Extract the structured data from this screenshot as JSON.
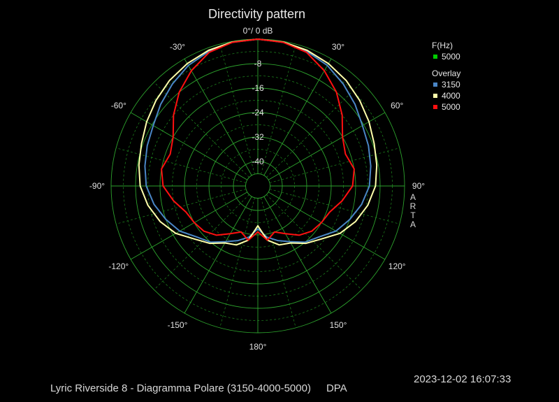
{
  "chart_data": {
    "type": "polar",
    "title": "Directivity pattern",
    "reference_label": "0°/ 0 dB",
    "radial_unit": "dB",
    "radial_range": [
      -48,
      0
    ],
    "radial_ticks": [
      "-8",
      "-16",
      "-24",
      "-32",
      "-40"
    ],
    "radial_tick_values": [
      -8,
      -16,
      -24,
      -32,
      -40
    ],
    "angle_ticks": [
      {
        "deg": 0,
        "label": "0°/ 0 dB"
      },
      {
        "deg": 30,
        "label": "30°"
      },
      {
        "deg": 60,
        "label": "60°"
      },
      {
        "deg": 90,
        "label": "90°"
      },
      {
        "deg": 120,
        "label": "120°"
      },
      {
        "deg": 150,
        "label": "150°"
      },
      {
        "deg": 180,
        "label": "180°"
      },
      {
        "deg": -150,
        "label": "-150°"
      },
      {
        "deg": -120,
        "label": "-120°"
      },
      {
        "deg": -90,
        "label": "-90°"
      },
      {
        "deg": -60,
        "label": "-60°"
      },
      {
        "deg": -30,
        "label": "-30°"
      }
    ],
    "grid": true,
    "legend": {
      "placement": "top-right",
      "group1_title": "F(Hz)",
      "group1_items": [
        {
          "label": "5000",
          "color": "#00cc00"
        }
      ],
      "group2_title": "Overlay",
      "group2_items": [
        {
          "label": "3150",
          "color": "#4a86c6"
        },
        {
          "label": "4000",
          "color": "#ffffaa"
        },
        {
          "label": "5000",
          "color": "#ff1010"
        }
      ]
    },
    "angles_deg": [
      0,
      10,
      20,
      30,
      40,
      50,
      60,
      70,
      80,
      90,
      100,
      110,
      120,
      130,
      140,
      150,
      160,
      170,
      180
    ],
    "series": [
      {
        "name": "3150",
        "color": "#4a86c6",
        "values": [
          0,
          -0.3,
          -1.2,
          -2.5,
          -4.5,
          -6.5,
          -8.5,
          -9.5,
          -10.5,
          -11.5,
          -13.5,
          -16,
          -18.5,
          -22,
          -24,
          -27,
          -29,
          -31,
          -34
        ]
      },
      {
        "name": "4000",
        "color": "#ffffaa",
        "values": [
          0,
          -0.2,
          -0.8,
          -1.8,
          -3,
          -4.5,
          -6,
          -7.5,
          -8.5,
          -9.5,
          -11.5,
          -14,
          -17,
          -21,
          -23.5,
          -26.5,
          -27.5,
          -30,
          -35
        ]
      },
      {
        "name": "5000",
        "color": "#ff1010",
        "values": [
          0,
          -0.3,
          -1.5,
          -4.5,
          -8,
          -12,
          -16,
          -17.5,
          -16,
          -17,
          -20,
          -23,
          -24,
          -25,
          -27,
          -30,
          -32,
          -30,
          -33
        ]
      }
    ]
  },
  "side_label": "ARTA",
  "timestamp": "2023-12-02  16:07:33",
  "footer": {
    "caption": "Lyric Riverside 8 - Diagramma Polare (3150-4000-5000)",
    "brand": "DPA"
  }
}
